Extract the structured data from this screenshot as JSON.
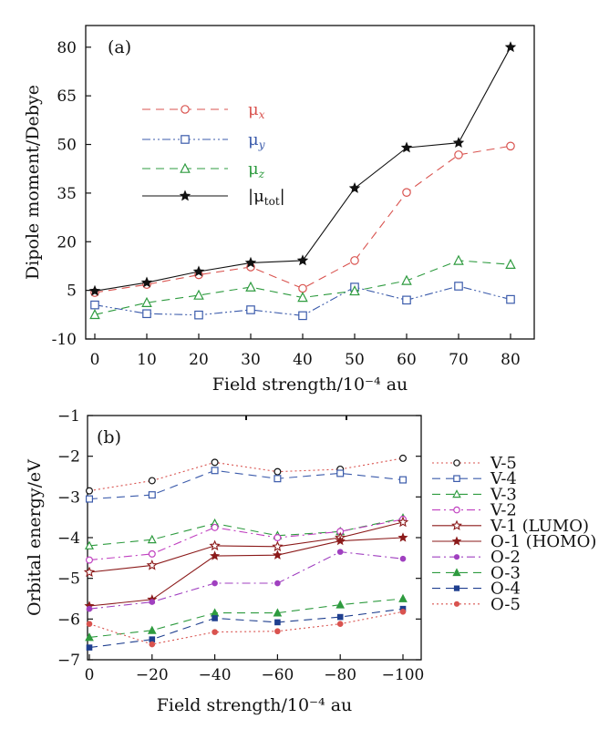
{
  "chart_data": [
    {
      "panel": "(a)",
      "type": "line",
      "xlabel": "Field strength/10⁻⁴ au",
      "ylabel": "Dipole moment/Debye",
      "xlim": [
        0,
        80
      ],
      "ylim": [
        -10,
        85
      ],
      "xticks": [
        0,
        10,
        20,
        30,
        40,
        50,
        60,
        70,
        80
      ],
      "yticks": [
        -10,
        5,
        20,
        35,
        50,
        65,
        80
      ],
      "x": [
        0,
        10,
        20,
        30,
        40,
        50,
        60,
        70,
        80
      ],
      "legend_position": "upper-left",
      "series": [
        {
          "name": "μx",
          "label_main": "μ",
          "label_sub": "x",
          "color": "#d9534f",
          "dash": "dash",
          "marker": "circle-open",
          "values": [
            4.3,
            6.8,
            9.8,
            12.2,
            5.6,
            14.2,
            35.2,
            46.8,
            49.5
          ]
        },
        {
          "name": "μy",
          "label_main": "μ",
          "label_sub": "y",
          "color": "#3b5bab",
          "dash": "dashdotdot",
          "marker": "square-open",
          "values": [
            0.5,
            -2.2,
            -2.6,
            -1.0,
            -2.8,
            6.0,
            2.0,
            6.3,
            2.2
          ]
        },
        {
          "name": "μz",
          "label_main": "μ",
          "label_sub": "z",
          "color": "#2e9b3f",
          "dash": "dash",
          "marker": "triangle-open",
          "values": [
            -2.5,
            1.2,
            3.5,
            6.0,
            2.8,
            4.8,
            8.0,
            14.2,
            13.0
          ]
        },
        {
          "name": "|μtot|",
          "label_main": "|μ",
          "label_sub": "tot",
          "label_end": "|",
          "color": "#111111",
          "dash": "solid",
          "marker": "star",
          "values": [
            4.8,
            7.4,
            10.8,
            13.5,
            14.2,
            36.5,
            49.0,
            50.5,
            80.0
          ]
        }
      ]
    },
    {
      "panel": "(b)",
      "type": "line",
      "xlabel": "Field strength/10⁻⁴ au",
      "ylabel": "Orbital energy/eV",
      "xlim": [
        0,
        -100
      ],
      "ylim": [
        -7,
        -1
      ],
      "xticks": [
        0,
        -20,
        -40,
        -60,
        -80,
        -100
      ],
      "xtick_labels": [
        "0",
        "−20",
        "−40",
        "−60",
        "−80",
        "−100"
      ],
      "yticks": [
        -7,
        -6,
        -5,
        -4,
        -3,
        -2,
        -1
      ],
      "ytick_labels": [
        "−7",
        "−6",
        "−5",
        "−4",
        "−3",
        "−2",
        "−1"
      ],
      "x": [
        0,
        -20,
        -40,
        -60,
        -80,
        -100
      ],
      "legend_position": "outside-right",
      "series": [
        {
          "name": "V-5",
          "color": "#d9534f",
          "dash": "dot",
          "marker": "circle-open",
          "marker_color": "#111111",
          "values": [
            -2.85,
            -2.6,
            -2.15,
            -2.38,
            -2.32,
            -2.05
          ]
        },
        {
          "name": "V-4",
          "color": "#3b5bab",
          "dash": "dash",
          "marker": "square-open",
          "values": [
            -3.05,
            -2.95,
            -2.35,
            -2.55,
            -2.42,
            -2.58
          ]
        },
        {
          "name": "V-3",
          "color": "#2e9b3f",
          "dash": "dash",
          "marker": "triangle-open",
          "values": [
            -4.2,
            -4.05,
            -3.65,
            -3.95,
            -3.85,
            -3.52
          ]
        },
        {
          "name": "V-2",
          "color": "#c040c0",
          "dash": "dashdot",
          "marker": "circle-open",
          "values": [
            -4.55,
            -4.4,
            -3.75,
            -4.0,
            -3.85,
            -3.55
          ]
        },
        {
          "name": "V-1 (LUMO)",
          "color": "#8b1a1a",
          "dash": "solid",
          "marker": "star-open",
          "values": [
            -4.85,
            -4.68,
            -4.2,
            -4.22,
            -4.0,
            -3.62
          ]
        },
        {
          "name": "O-1 (HOMO)",
          "color": "#8b1a1a",
          "dash": "solid",
          "marker": "star",
          "values": [
            -5.68,
            -5.52,
            -4.45,
            -4.43,
            -4.08,
            -4.0
          ]
        },
        {
          "name": "O-2",
          "color": "#a040c0",
          "dash": "dashdot",
          "marker": "circle",
          "values": [
            -5.75,
            -5.58,
            -5.12,
            -5.12,
            -4.35,
            -4.52
          ]
        },
        {
          "name": "O-3",
          "color": "#2e9b3f",
          "dash": "dash",
          "marker": "triangle",
          "values": [
            -6.45,
            -6.28,
            -5.85,
            -5.85,
            -5.65,
            -5.5
          ]
        },
        {
          "name": "O-4",
          "color": "#1f3f8f",
          "dash": "dash",
          "marker": "square",
          "values": [
            -6.7,
            -6.5,
            -5.98,
            -6.08,
            -5.95,
            -5.75
          ]
        },
        {
          "name": "O-5",
          "color": "#d9534f",
          "dash": "dot",
          "marker": "circle",
          "marker_color": "#d9534f",
          "values": [
            -6.12,
            -6.62,
            -6.32,
            -6.3,
            -6.12,
            -5.82
          ]
        }
      ]
    }
  ]
}
